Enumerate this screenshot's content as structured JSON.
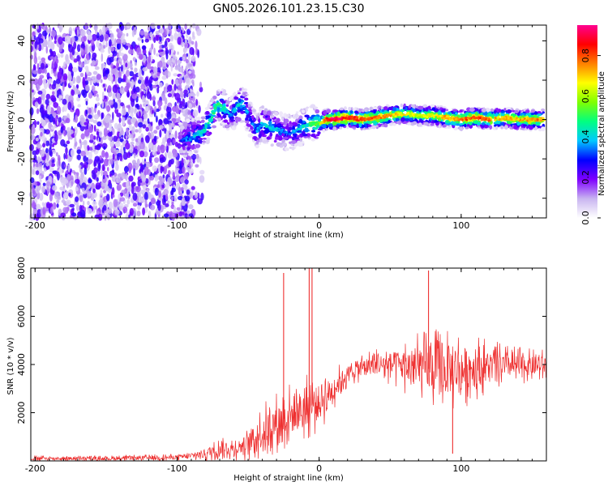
{
  "title": "GN05.2026.101.23.15.C30",
  "chart_data": [
    {
      "type": "heatmap",
      "title": "GN05.2026.101.23.15.C30",
      "xlabel": "Height of straight line (km)",
      "ylabel": "Frequency (Hz)",
      "xlim": [
        -203,
        160
      ],
      "ylim": [
        -50,
        48
      ],
      "xticks": [
        -200,
        -100,
        0,
        100
      ],
      "yticks": [
        -40,
        -20,
        0,
        20,
        40
      ],
      "colorbar": {
        "label": "Normalized spectral amplitude",
        "range": [
          0,
          0.95
        ],
        "ticks": [
          0.0,
          0.2,
          0.4,
          0.6,
          0.8
        ],
        "tick_labels": [
          "0.0",
          "0.2",
          "0.4",
          "0.6",
          "0.8"
        ],
        "colors": [
          "#ffffff",
          "#c8b4f0",
          "#7f00ff",
          "#0000ff",
          "#00c8ff",
          "#00ff80",
          "#80ff00",
          "#ffff00",
          "#ff8000",
          "#ff0000",
          "#ff0090"
        ]
      },
      "noise_region_km": [
        -203,
        -88
      ],
      "signal_track": {
        "x": [
          -98,
          -90,
          -82,
          -76,
          -72,
          -66,
          -62,
          -56,
          -52,
          -48,
          -44,
          -40,
          -35,
          -30,
          -25,
          -20,
          -15,
          -10,
          -5,
          0,
          5,
          10,
          20,
          30,
          40,
          50,
          60,
          70,
          80,
          90,
          100,
          110,
          120,
          130,
          140,
          150,
          158
        ],
        "freq": [
          -11,
          -9,
          -6,
          0,
          8,
          5,
          2,
          8,
          6,
          -1,
          -6,
          -2,
          -4,
          -5,
          -6,
          -7,
          -5,
          -3,
          -2,
          -2,
          0,
          0,
          1,
          0,
          1,
          2,
          3,
          2,
          2,
          1,
          0,
          1,
          0,
          1,
          0,
          0,
          0
        ],
        "amplitude": [
          0.25,
          0.35,
          0.4,
          0.45,
          0.45,
          0.4,
          0.3,
          0.45,
          0.35,
          0.3,
          0.35,
          0.35,
          0.4,
          0.35,
          0.3,
          0.3,
          0.35,
          0.4,
          0.5,
          0.55,
          0.8,
          0.9,
          0.85,
          0.8,
          0.75,
          0.7,
          0.65,
          0.6,
          0.65,
          0.7,
          0.75,
          0.8,
          0.75,
          0.7,
          0.7,
          0.75,
          0.7
        ]
      }
    },
    {
      "type": "line",
      "xlabel": "Height of straight line (km)",
      "ylabel": "SNR (10 * v/v)",
      "xlim": [
        -203,
        160
      ],
      "ylim": [
        0,
        8000
      ],
      "xticks": [
        -200,
        -100,
        0,
        100
      ],
      "yticks": [
        2000,
        4000,
        6000,
        8000
      ],
      "color": "#ee3030",
      "envelope": {
        "x": [
          -203,
          -150,
          -100,
          -90,
          -80,
          -70,
          -60,
          -50,
          -40,
          -30,
          -20,
          -10,
          0,
          10,
          20,
          30,
          40,
          50,
          60,
          70,
          80,
          90,
          100,
          110,
          120,
          130,
          140,
          150,
          160
        ],
        "mean": [
          100,
          100,
          150,
          200,
          300,
          500,
          500,
          700,
          1200,
          1600,
          1900,
          2200,
          2400,
          3000,
          3600,
          3900,
          4000,
          4000,
          3950,
          3850,
          3800,
          3750,
          3800,
          3900,
          3950,
          3950,
          3950,
          3950,
          3950
        ],
        "spread": [
          120,
          120,
          150,
          200,
          350,
          450,
          500,
          700,
          1200,
          1300,
          1400,
          1400,
          1300,
          900,
          600,
          600,
          700,
          900,
          1200,
          1500,
          1700,
          1800,
          1700,
          1400,
          1100,
          900,
          800,
          700,
          700
        ]
      },
      "spikes": [
        {
          "x": -25,
          "y": 7800
        },
        {
          "x": -7,
          "y": 8000
        },
        {
          "x": -5,
          "y": 8000
        },
        {
          "x": 77,
          "y": 7900
        },
        {
          "x": 94,
          "y": 300
        }
      ]
    }
  ]
}
